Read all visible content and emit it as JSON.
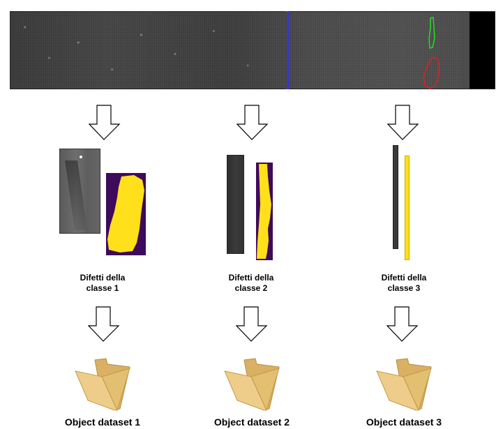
{
  "classes": [
    {
      "label_line1": "Difetti della",
      "label_line2": "classe 1",
      "dataset_label": "Object dataset 1"
    },
    {
      "label_line1": "Difetti della",
      "label_line2": "classe 2",
      "dataset_label": "Object dataset 2"
    },
    {
      "label_line1": "Difetti della",
      "label_line2": "classe 3",
      "dataset_label": "Object dataset 3"
    }
  ],
  "colors": {
    "mask_background": "#3e0a5c",
    "mask_defect": "#ffe01a",
    "roi_blue": "#2a2aff",
    "roi_green": "#22dd22",
    "roi_red": "#dd2222",
    "folder": "#e8c377"
  }
}
